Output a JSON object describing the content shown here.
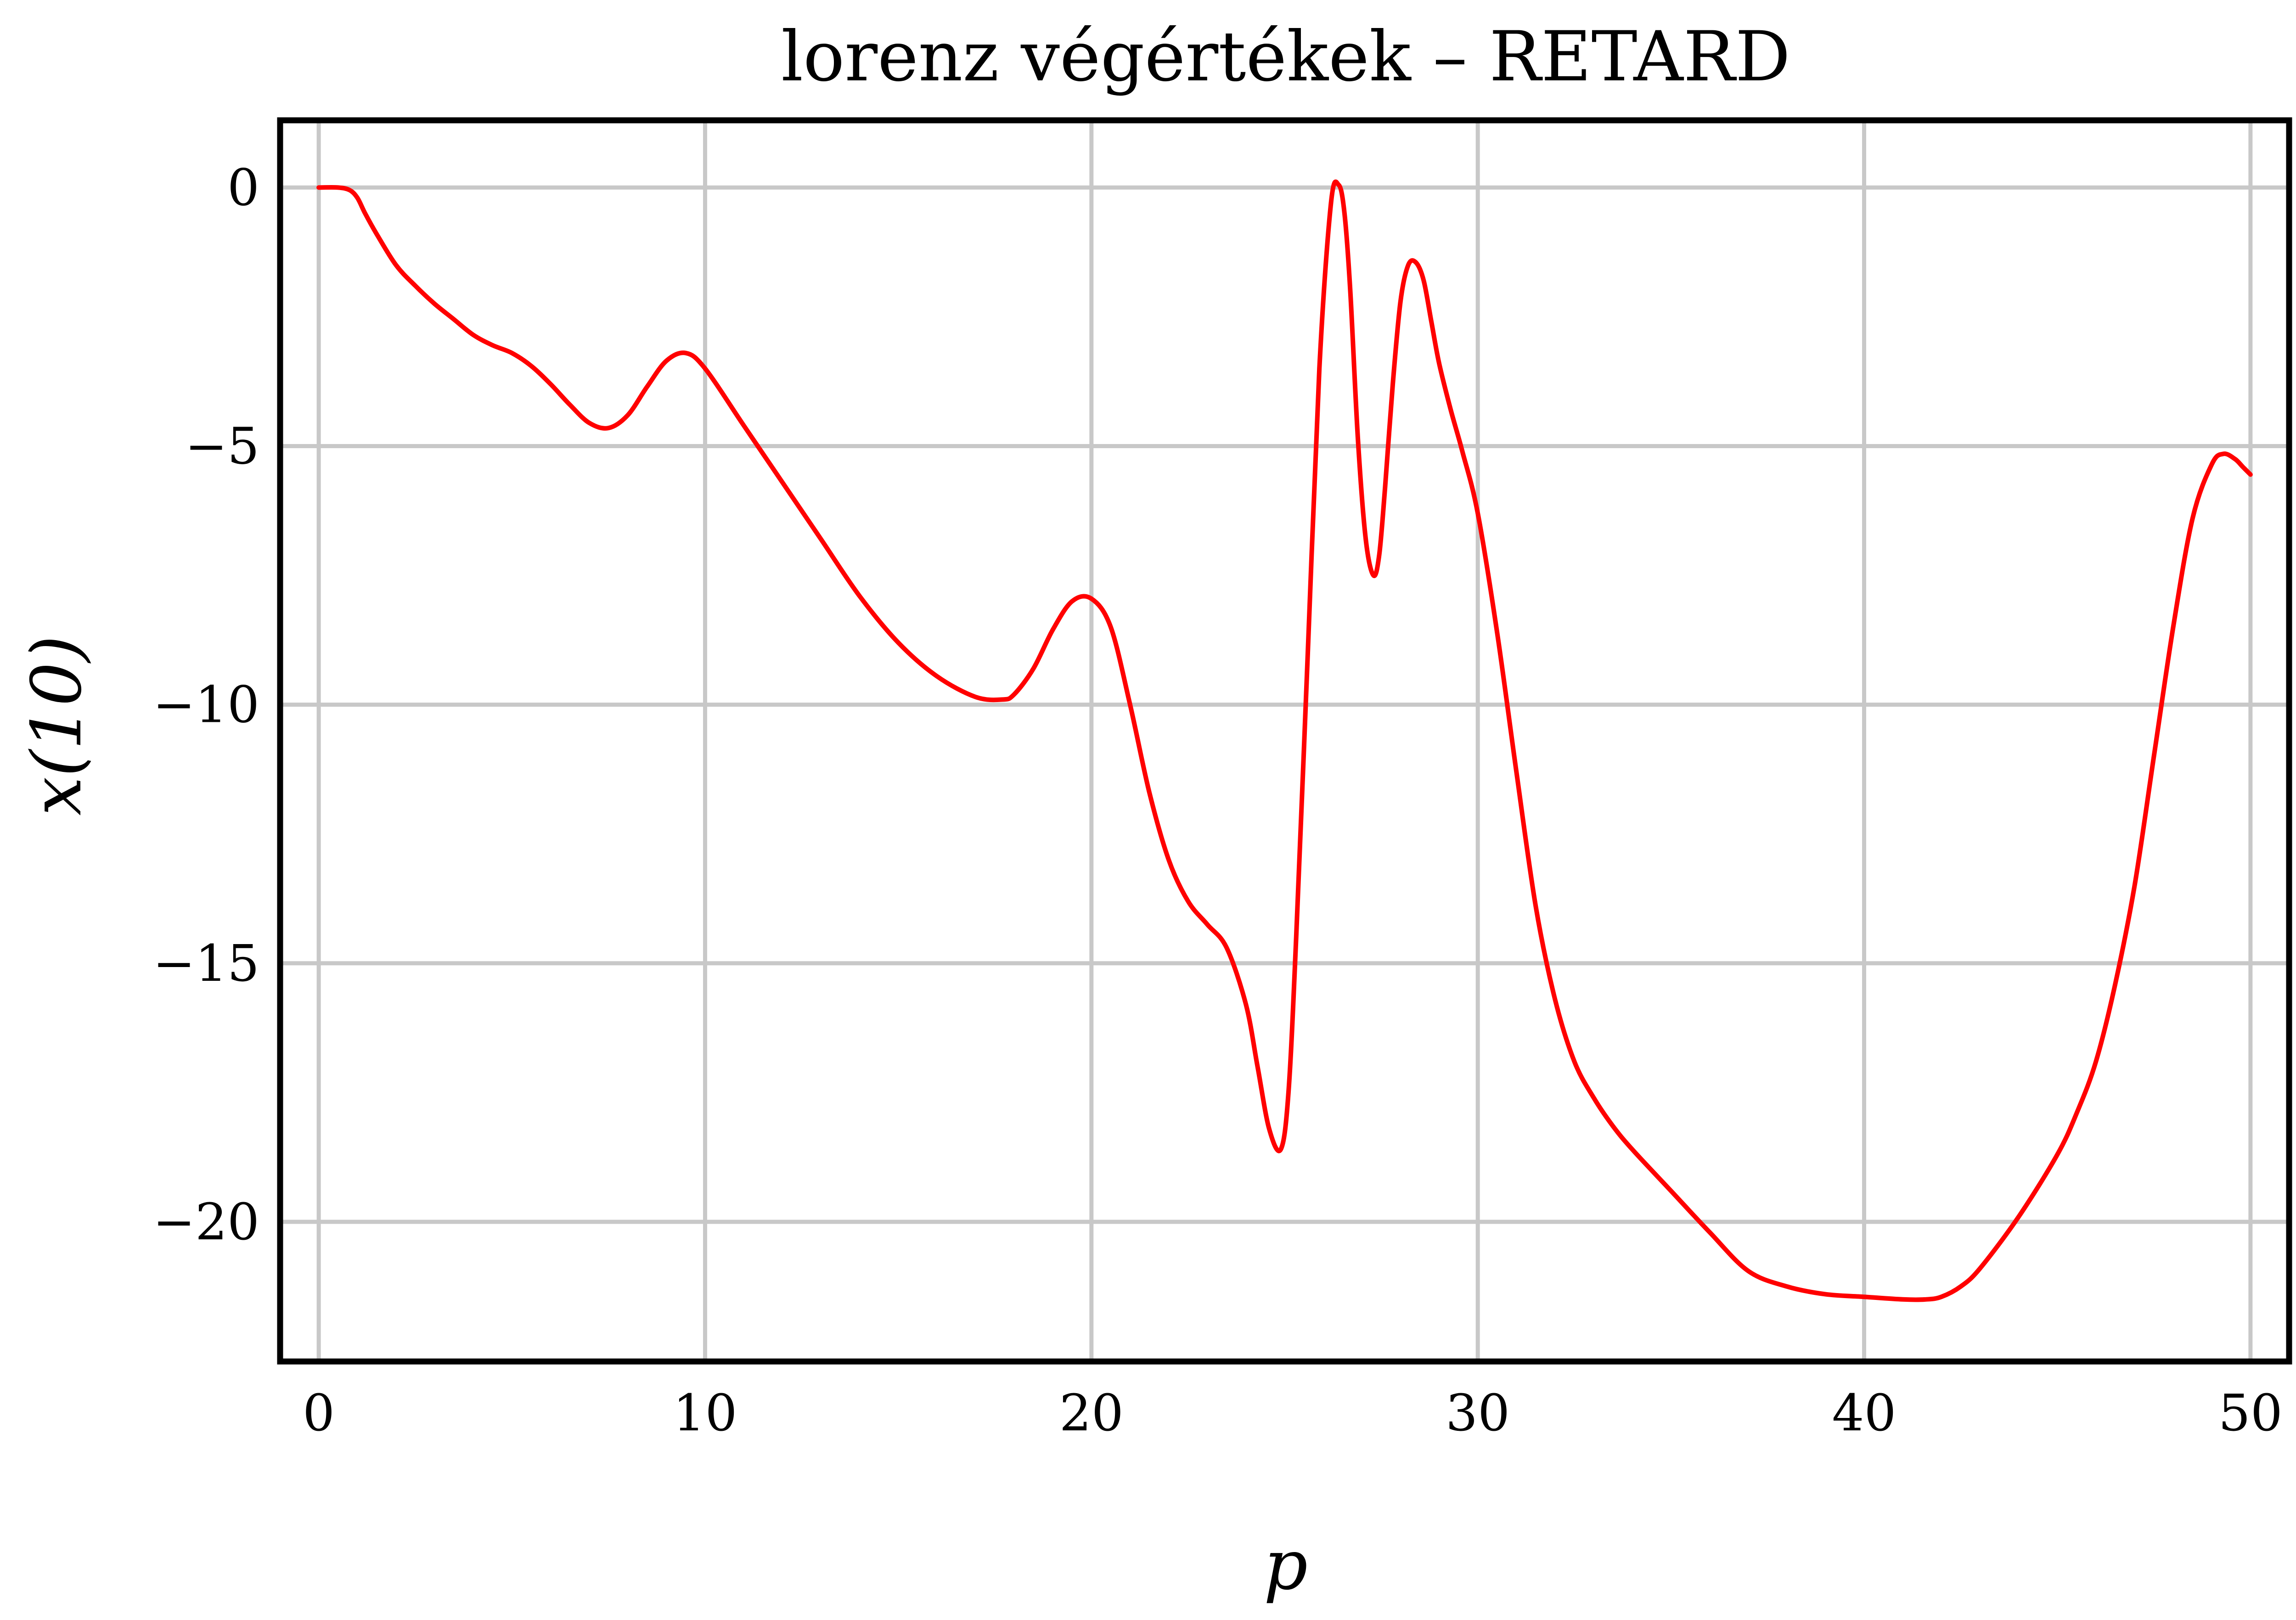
{
  "chart_data": {
    "type": "line",
    "title": "lorenz végértékek – RETARD",
    "xlabel": "p",
    "ylabel": "x(10)",
    "xlim": [
      -1,
      51
    ],
    "ylim": [
      -22.7,
      1.3
    ],
    "xticks": [
      0,
      10,
      20,
      30,
      40,
      50
    ],
    "xtick_labels": [
      "0",
      "10",
      "20",
      "30",
      "40",
      "50"
    ],
    "yticks": [
      0,
      -5,
      -10,
      -15,
      -20
    ],
    "ytick_labels": [
      "0",
      "−5",
      "−10",
      "−15",
      "−20"
    ],
    "grid": true,
    "series": [
      {
        "color": "#ff0000",
        "x": [
          0,
          0.5,
          0.8,
          1.0,
          1.2,
          1.5,
          2,
          2.5,
          3,
          3.5,
          4,
          4.5,
          5,
          5.5,
          6,
          6.5,
          7,
          7.5,
          8,
          8.5,
          9,
          9.5,
          10,
          11,
          12,
          13,
          14,
          15,
          16,
          17,
          17.7,
          18,
          18.5,
          19,
          19.5,
          20,
          20.5,
          21,
          21.5,
          22,
          22.5,
          23,
          23.5,
          24,
          24.3,
          24.6,
          24.9,
          25.1,
          25.3,
          25.6,
          25.9,
          26.2,
          26.4,
          26.55,
          26.7,
          26.9,
          27.1,
          27.3,
          27.45,
          27.6,
          27.8,
          28.0,
          28.2,
          28.4,
          28.6,
          28.8,
          29.0,
          29.3,
          29.6,
          30,
          30.5,
          31,
          31.5,
          32,
          32.5,
          33,
          33.5,
          34,
          35,
          36,
          37,
          38,
          39,
          40,
          41,
          41.6,
          42,
          42.5,
          43,
          44,
          45,
          45.5,
          46,
          46.5,
          47,
          47.5,
          48,
          48.5,
          49,
          49.3,
          49.6,
          49.8,
          50
        ],
        "y": [
          0,
          0,
          -0.05,
          -0.2,
          -0.5,
          -0.9,
          -1.5,
          -1.9,
          -2.25,
          -2.55,
          -2.85,
          -3.05,
          -3.2,
          -3.45,
          -3.8,
          -4.2,
          -4.55,
          -4.65,
          -4.4,
          -3.85,
          -3.35,
          -3.2,
          -3.5,
          -4.6,
          -5.7,
          -6.8,
          -7.9,
          -8.8,
          -9.45,
          -9.85,
          -9.9,
          -9.8,
          -9.3,
          -8.55,
          -8.0,
          -7.95,
          -8.5,
          -10.0,
          -11.7,
          -13.0,
          -13.8,
          -14.25,
          -14.7,
          -15.8,
          -17.0,
          -18.2,
          -18.6,
          -17.5,
          -14.5,
          -9.0,
          -3.5,
          -0.3,
          0.05,
          -0.5,
          -2.0,
          -4.9,
          -6.8,
          -7.5,
          -7.1,
          -5.8,
          -3.8,
          -2.2,
          -1.5,
          -1.45,
          -1.8,
          -2.6,
          -3.4,
          -4.3,
          -5.1,
          -6.3,
          -8.6,
          -11.3,
          -13.9,
          -15.7,
          -16.9,
          -17.6,
          -18.15,
          -18.6,
          -19.4,
          -20.2,
          -20.95,
          -21.25,
          -21.4,
          -21.45,
          -21.5,
          -21.5,
          -21.45,
          -21.25,
          -20.9,
          -19.9,
          -18.7,
          -17.9,
          -16.9,
          -15.4,
          -13.5,
          -11.0,
          -8.5,
          -6.4,
          -5.35,
          -5.15,
          -5.25,
          -5.4,
          -5.55
        ]
      }
    ]
  }
}
